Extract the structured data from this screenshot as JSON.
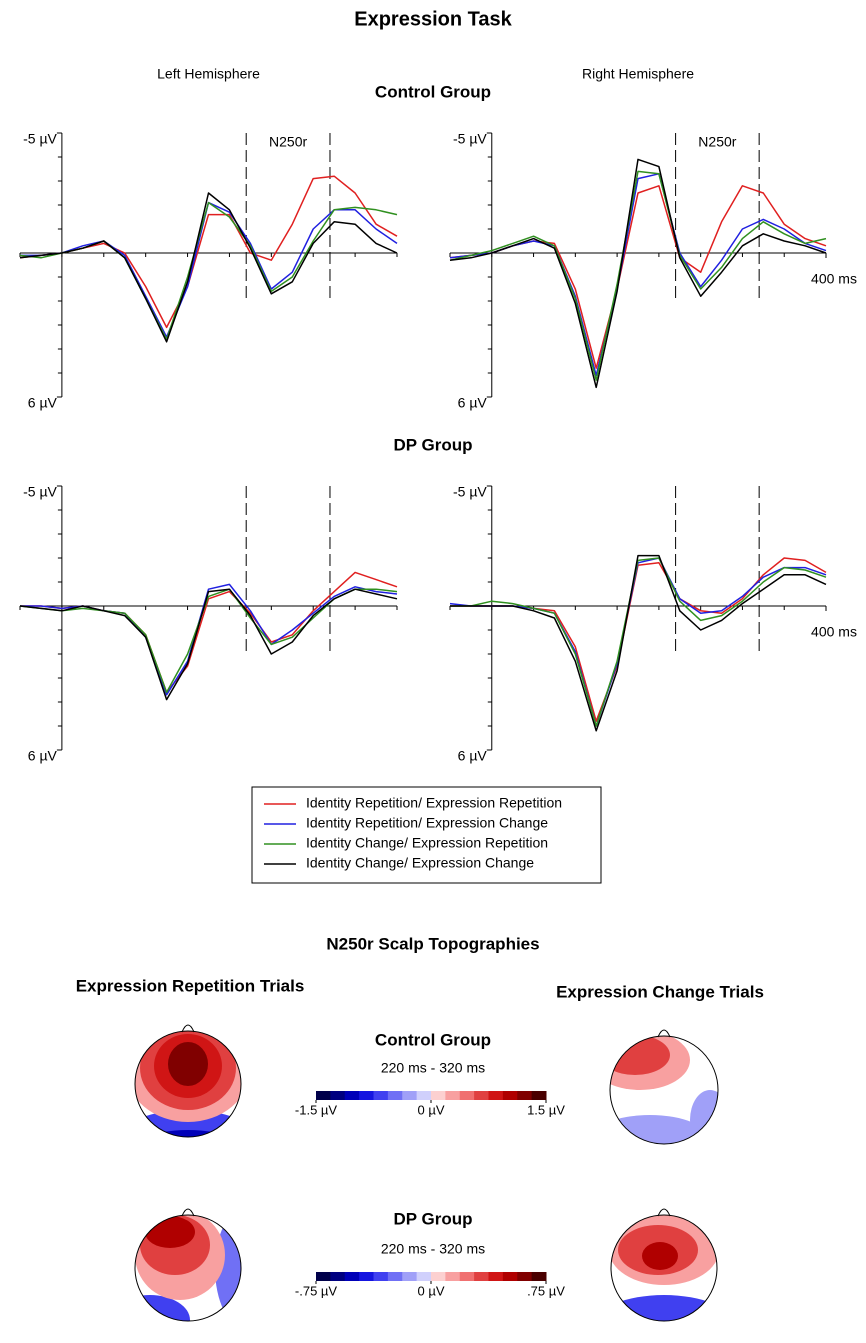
{
  "title": "Expression Task",
  "groups": [
    "Control Group",
    "DP Group"
  ],
  "chart_data": [
    {
      "type": "line",
      "title": "Left Hemisphere",
      "annotation": "N250r",
      "x": [
        -50,
        -25,
        0,
        25,
        50,
        75,
        100,
        125,
        150,
        175,
        200,
        225,
        250,
        275,
        300,
        325,
        350,
        375,
        400
      ],
      "xlim": [
        -50,
        400
      ],
      "xticks_minor": [
        -50,
        0,
        50,
        100,
        150,
        200,
        250,
        300,
        350,
        400
      ],
      "ylim": [
        -5,
        6
      ],
      "y_inverted": true,
      "yticks": [
        {
          "value": -5,
          "label": "-5 µV"
        },
        {
          "value": 6,
          "label": "6 µV"
        }
      ],
      "yticks_minor": [
        -4,
        -3,
        -2,
        -1,
        0,
        1,
        2,
        3,
        4,
        5
      ],
      "vlines": [
        220,
        320
      ],
      "series": [
        {
          "name": "Identity Repetition/ Expression Repetition",
          "color": "#e02020",
          "values": [
            0.2,
            0.1,
            0,
            -0.2,
            -0.4,
            0,
            1.4,
            3.1,
            1.4,
            -1.6,
            -1.6,
            0,
            0.3,
            -1.2,
            -3.1,
            -3.2,
            -2.5,
            -1.2,
            -0.7
          ]
        },
        {
          "name": "Identity Repetition/ Expression Change",
          "color": "#2020e0",
          "values": [
            0.1,
            0.1,
            0,
            -0.3,
            -0.5,
            0.1,
            1.8,
            3.5,
            1.4,
            -2.1,
            -1.7,
            -0.4,
            1.5,
            0.8,
            -1.0,
            -1.8,
            -1.8,
            -1.0,
            -0.4
          ]
        },
        {
          "name": "Identity Change/ Expression Repetition",
          "color": "#309020",
          "values": [
            0.1,
            0.2,
            0,
            -0.2,
            -0.5,
            0.2,
            1.9,
            3.6,
            1.0,
            -2.1,
            -1.5,
            -0.3,
            1.6,
            1.0,
            -0.5,
            -1.8,
            -1.9,
            -1.8,
            -1.6
          ]
        },
        {
          "name": "Identity Change/ Expression Change",
          "color": "#000000",
          "values": [
            0.2,
            0.1,
            0,
            -0.2,
            -0.5,
            0.2,
            1.9,
            3.7,
            1.2,
            -2.5,
            -1.8,
            -0.2,
            1.7,
            1.2,
            -0.4,
            -1.3,
            -1.2,
            -0.4,
            0
          ]
        }
      ]
    },
    {
      "type": "line",
      "title": "Right Hemisphere",
      "annotation": "N250r",
      "x": [
        -50,
        -25,
        0,
        25,
        50,
        75,
        100,
        125,
        150,
        175,
        200,
        225,
        250,
        275,
        300,
        325,
        350,
        375,
        400
      ],
      "xlim": [
        -50,
        400
      ],
      "xticks": [
        {
          "value": 400,
          "label": "400 ms"
        }
      ],
      "xticks_minor": [
        -50,
        0,
        50,
        100,
        150,
        200,
        250,
        300,
        350,
        400
      ],
      "ylim": [
        -5,
        6
      ],
      "y_inverted": true,
      "yticks": [
        {
          "value": -5,
          "label": "-5 µV"
        },
        {
          "value": 6,
          "label": "6 µV"
        }
      ],
      "yticks_minor": [
        -4,
        -3,
        -2,
        -1,
        0,
        1,
        2,
        3,
        4,
        5
      ],
      "vlines": [
        220,
        320
      ],
      "series": [
        {
          "color": "#e02020",
          "values": [
            0.2,
            0.1,
            0,
            -0.3,
            -0.5,
            -0.4,
            1.5,
            4.8,
            1.5,
            -2.5,
            -2.8,
            0.2,
            0.8,
            -1.3,
            -2.8,
            -2.5,
            -1.2,
            -0.6,
            -0.3
          ]
        },
        {
          "color": "#2020e0",
          "values": [
            0.2,
            0.1,
            0,
            -0.3,
            -0.5,
            -0.3,
            1.8,
            5.1,
            1.5,
            -3.1,
            -3.3,
            0,
            1.4,
            0.3,
            -1.0,
            -1.4,
            -1.0,
            -0.4,
            -0.1
          ]
        },
        {
          "color": "#309020",
          "values": [
            0.3,
            0.1,
            -0.1,
            -0.4,
            -0.7,
            -0.3,
            1.9,
            5.3,
            1.3,
            -3.4,
            -3.3,
            0.1,
            1.5,
            0.6,
            -0.6,
            -1.3,
            -0.8,
            -0.4,
            -0.6
          ]
        },
        {
          "color": "#000000",
          "values": [
            0.3,
            0.2,
            0,
            -0.3,
            -0.6,
            -0.2,
            2.1,
            5.6,
            1.6,
            -3.9,
            -3.6,
            0.2,
            1.8,
            0.8,
            -0.3,
            -0.8,
            -0.5,
            -0.3,
            0
          ]
        }
      ]
    },
    {
      "type": "line",
      "x": [
        -50,
        -25,
        0,
        25,
        50,
        75,
        100,
        125,
        150,
        175,
        200,
        225,
        250,
        275,
        300,
        325,
        350,
        375,
        400
      ],
      "xlim": [
        -50,
        400
      ],
      "xticks_minor": [
        -50,
        0,
        50,
        100,
        150,
        200,
        250,
        300,
        350,
        400
      ],
      "ylim": [
        -5,
        6
      ],
      "y_inverted": true,
      "yticks": [
        {
          "value": -5,
          "label": "-5 µV"
        },
        {
          "value": 6,
          "label": "6 µV"
        }
      ],
      "yticks_minor": [
        -4,
        -3,
        -2,
        -1,
        0,
        1,
        2,
        3,
        4,
        5
      ],
      "vlines": [
        220,
        320
      ],
      "series": [
        {
          "color": "#e02020",
          "values": [
            0,
            0,
            0.1,
            0,
            0.2,
            0.3,
            1.2,
            3.6,
            2.5,
            -0.3,
            -0.6,
            0.3,
            1.5,
            1.2,
            0.2,
            -0.6,
            -1.4,
            -1.1,
            -0.8
          ]
        },
        {
          "color": "#2020e0",
          "values": [
            0,
            0,
            0.1,
            0,
            0.2,
            0.3,
            1.3,
            3.7,
            2.3,
            -0.7,
            -0.9,
            0.2,
            1.6,
            1.0,
            0.3,
            -0.4,
            -0.8,
            -0.6,
            -0.5
          ]
        },
        {
          "color": "#309020",
          "values": [
            0,
            0.1,
            0.2,
            0.1,
            0.2,
            0.3,
            1.2,
            3.6,
            2.0,
            -0.4,
            -0.7,
            0.5,
            1.6,
            1.3,
            0.5,
            -0.3,
            -0.7,
            -0.7,
            -0.6
          ]
        },
        {
          "color": "#000000",
          "values": [
            0,
            0.1,
            0.2,
            0,
            0.2,
            0.4,
            1.3,
            3.9,
            2.4,
            -0.6,
            -0.7,
            0.4,
            2.0,
            1.5,
            0.4,
            -0.3,
            -0.7,
            -0.5,
            -0.3
          ]
        }
      ]
    },
    {
      "type": "line",
      "x": [
        -50,
        -25,
        0,
        25,
        50,
        75,
        100,
        125,
        150,
        175,
        200,
        225,
        250,
        275,
        300,
        325,
        350,
        375,
        400
      ],
      "xlim": [
        -50,
        400
      ],
      "xticks": [
        {
          "value": 400,
          "label": "400 ms"
        }
      ],
      "xticks_minor": [
        -50,
        0,
        50,
        100,
        150,
        200,
        250,
        300,
        350,
        400
      ],
      "ylim": [
        -5,
        6
      ],
      "y_inverted": true,
      "yticks": [
        {
          "value": -5,
          "label": "-5 µV"
        },
        {
          "value": 6,
          "label": "6 µV"
        }
      ],
      "yticks_minor": [
        -4,
        -3,
        -2,
        -1,
        0,
        1,
        2,
        3,
        4,
        5
      ],
      "vlines": [
        220,
        320
      ],
      "series": [
        {
          "color": "#e02020",
          "values": [
            0,
            0,
            0,
            0,
            0.1,
            0.2,
            1.7,
            4.8,
            2.5,
            -1.7,
            -1.8,
            -0.3,
            0.2,
            0.3,
            -0.3,
            -1.3,
            -2.0,
            -1.9,
            -1.4
          ]
        },
        {
          "color": "#2020e0",
          "values": [
            -0.1,
            0,
            0,
            0,
            0.1,
            0.3,
            1.9,
            5.0,
            2.4,
            -1.8,
            -2.0,
            -0.3,
            0.3,
            0.2,
            -0.4,
            -1.2,
            -1.6,
            -1.6,
            -1.3
          ]
        },
        {
          "color": "#309020",
          "values": [
            0,
            0,
            -0.2,
            -0.1,
            0.1,
            0.3,
            2.0,
            5.0,
            2.3,
            -1.9,
            -2.0,
            -0.2,
            0.6,
            0.4,
            -0.2,
            -1.0,
            -1.6,
            -1.5,
            -1.2
          ]
        },
        {
          "color": "#000000",
          "values": [
            0,
            0,
            0,
            0,
            0.2,
            0.5,
            2.3,
            5.2,
            2.7,
            -2.1,
            -2.1,
            0.2,
            1.0,
            0.6,
            -0.1,
            -0.7,
            -1.3,
            -1.3,
            -0.9
          ]
        }
      ]
    }
  ],
  "topographies": {
    "title": "N250r Scalp Topographies",
    "columns": [
      "Expression Repetition Trials",
      "Expression Change Trials"
    ],
    "window": "220 ms - 320 ms",
    "palette": [
      "#00004a",
      "#000080",
      "#0000b8",
      "#1515e0",
      "#4040f0",
      "#7070f5",
      "#a0a0f8",
      "#d0d0fc",
      "#fcd0d0",
      "#f8a0a0",
      "#f07070",
      "#e04040",
      "#d01515",
      "#b00000",
      "#800000",
      "#4a0000"
    ],
    "scales": [
      {
        "lim": [
          -1.5,
          1.5
        ],
        "ticks": [
          {
            "value": -1.5,
            "label": "-1.5 µV"
          },
          {
            "value": 0,
            "label": "0 µV"
          },
          {
            "value": 1.5,
            "label": "1.5 µV"
          }
        ]
      },
      {
        "lim": [
          -0.75,
          0.75
        ],
        "ticks": [
          {
            "value": -0.75,
            "label": "-.75 µV"
          },
          {
            "value": 0,
            "label": "0 µV"
          },
          {
            "value": 0.75,
            "label": ".75 µV"
          }
        ]
      }
    ]
  }
}
